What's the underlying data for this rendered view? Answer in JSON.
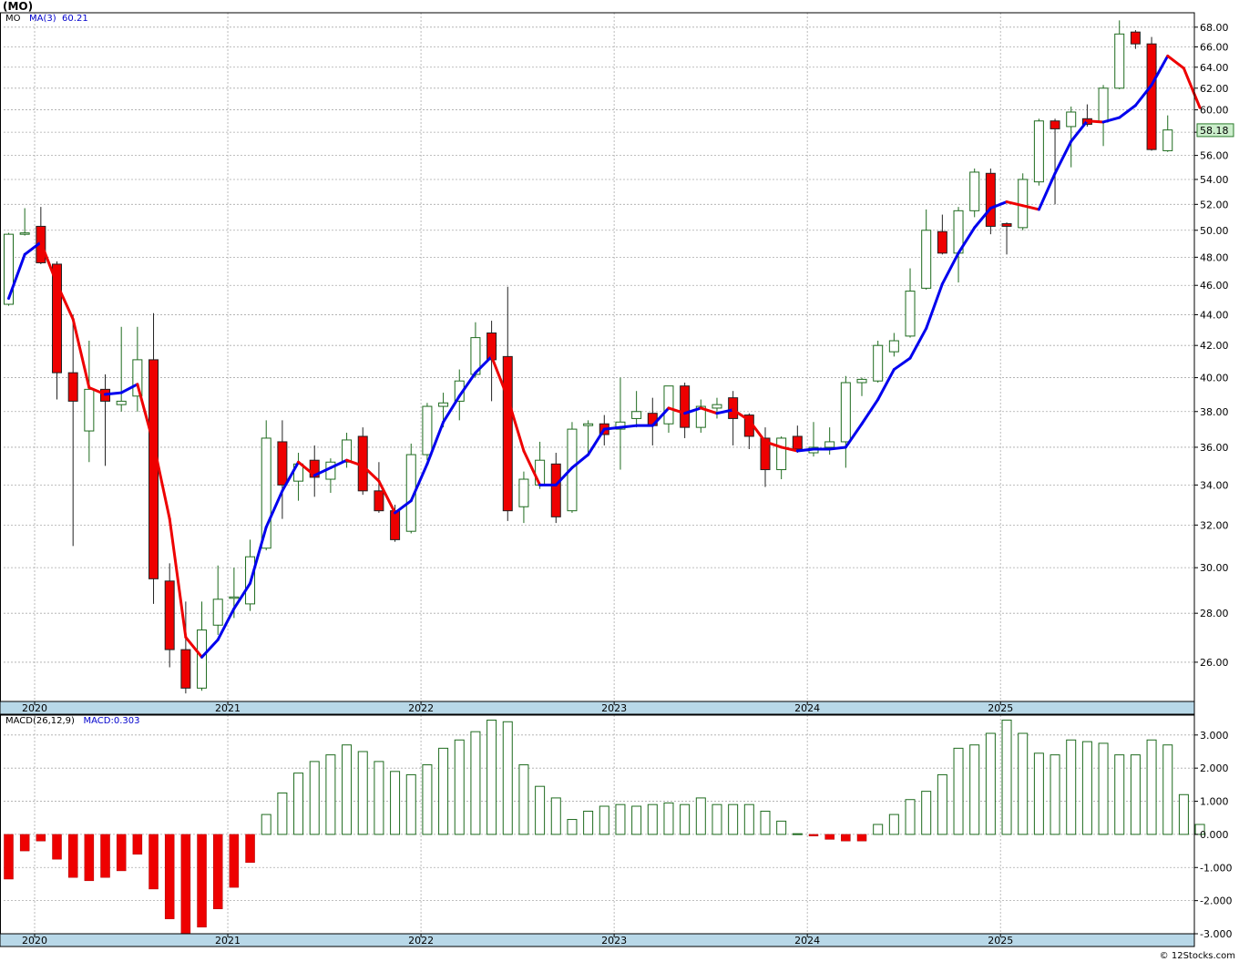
{
  "ticker_label": "(MO)",
  "price_legend": {
    "symbol": "MO",
    "ma_label": "MA(3)",
    "ma_value": "60.21"
  },
  "macd_legend": {
    "label": "MACD(26,12,9)",
    "value_label": "MACD:0.303"
  },
  "credit": "© 12Stocks.com",
  "colors": {
    "up": "#ffffff",
    "up_border": "#1e6b1e",
    "down": "#ee0000",
    "ma_up": "#0000ee",
    "ma_down": "#ee0000",
    "grid": "#aaaaaa",
    "axis_band": "#b8d8e8",
    "last_price_box": "#cceecc"
  },
  "chart_data": [
    {
      "type": "candlestick",
      "interval": "monthly",
      "y_scale": "log",
      "ylim": [
        24.5,
        69.5
      ],
      "y_ticks": [
        "26.00",
        "28.00",
        "30.00",
        "32.00",
        "34.00",
        "36.00",
        "38.00",
        "40.00",
        "42.00",
        "44.00",
        "46.00",
        "48.00",
        "50.00",
        "52.00",
        "54.00",
        "56.00",
        "58.00",
        "60.00",
        "62.00",
        "64.00",
        "66.00",
        "68.00"
      ],
      "x_labels": [
        "2020",
        "2021",
        "2022",
        "2023",
        "2024",
        "2025"
      ],
      "last_price": "58.18",
      "grid": true,
      "candles": [
        {
          "o": 44.7,
          "h": 49.8,
          "l": 44.6,
          "c": 49.7
        },
        {
          "o": 49.8,
          "h": 51.7,
          "l": 49.6,
          "c": 49.8
        },
        {
          "o": 50.3,
          "h": 51.8,
          "l": 47.5,
          "c": 47.6
        },
        {
          "o": 47.5,
          "h": 47.7,
          "l": 38.7,
          "c": 40.3
        },
        {
          "o": 40.3,
          "h": 44.0,
          "l": 31.0,
          "c": 38.6
        },
        {
          "o": 36.9,
          "h": 42.3,
          "l": 35.2,
          "c": 39.3
        },
        {
          "o": 39.3,
          "h": 40.2,
          "l": 35.0,
          "c": 38.6
        },
        {
          "o": 38.4,
          "h": 43.2,
          "l": 38.0,
          "c": 38.6
        },
        {
          "o": 38.9,
          "h": 43.2,
          "l": 38.0,
          "c": 41.1
        },
        {
          "o": 41.1,
          "h": 44.1,
          "l": 28.4,
          "c": 29.5
        },
        {
          "o": 29.4,
          "h": 30.2,
          "l": 25.8,
          "c": 26.5
        },
        {
          "o": 26.5,
          "h": 28.5,
          "l": 24.8,
          "c": 25.0
        },
        {
          "o": 25.0,
          "h": 28.5,
          "l": 24.9,
          "c": 27.3
        },
        {
          "o": 27.5,
          "h": 30.1,
          "l": 27.1,
          "c": 28.6
        },
        {
          "o": 28.7,
          "h": 30.0,
          "l": 27.8,
          "c": 28.7
        },
        {
          "o": 28.4,
          "h": 31.3,
          "l": 28.1,
          "c": 30.5
        },
        {
          "o": 30.9,
          "h": 37.5,
          "l": 30.8,
          "c": 36.5
        },
        {
          "o": 36.3,
          "h": 37.5,
          "l": 32.3,
          "c": 34.0
        },
        {
          "o": 34.2,
          "h": 35.7,
          "l": 33.2,
          "c": 35.1
        },
        {
          "o": 35.3,
          "h": 36.1,
          "l": 33.4,
          "c": 34.4
        },
        {
          "o": 34.3,
          "h": 35.4,
          "l": 33.6,
          "c": 35.2
        },
        {
          "o": 35.2,
          "h": 36.8,
          "l": 34.9,
          "c": 36.4
        },
        {
          "o": 36.6,
          "h": 37.1,
          "l": 33.5,
          "c": 33.7
        },
        {
          "o": 33.7,
          "h": 35.2,
          "l": 32.6,
          "c": 32.7
        },
        {
          "o": 32.7,
          "h": 33.0,
          "l": 31.2,
          "c": 31.3
        },
        {
          "o": 31.7,
          "h": 36.2,
          "l": 31.6,
          "c": 35.6
        },
        {
          "o": 35.6,
          "h": 38.5,
          "l": 35.3,
          "c": 38.3
        },
        {
          "o": 38.3,
          "h": 39.1,
          "l": 37.1,
          "c": 38.5
        },
        {
          "o": 38.6,
          "h": 40.5,
          "l": 37.5,
          "c": 39.8
        },
        {
          "o": 40.2,
          "h": 43.5,
          "l": 40.0,
          "c": 42.5
        },
        {
          "o": 42.8,
          "h": 43.6,
          "l": 38.6,
          "c": 41.1
        },
        {
          "o": 41.3,
          "h": 45.9,
          "l": 32.2,
          "c": 32.7
        },
        {
          "o": 32.9,
          "h": 34.7,
          "l": 32.1,
          "c": 34.3
        },
        {
          "o": 34.0,
          "h": 36.3,
          "l": 33.8,
          "c": 35.3
        },
        {
          "o": 35.1,
          "h": 35.7,
          "l": 32.1,
          "c": 32.4
        },
        {
          "o": 32.7,
          "h": 37.4,
          "l": 32.6,
          "c": 37.0
        },
        {
          "o": 37.2,
          "h": 37.5,
          "l": 35.5,
          "c": 37.3
        },
        {
          "o": 37.3,
          "h": 37.8,
          "l": 36.1,
          "c": 36.7
        },
        {
          "o": 37.0,
          "h": 40.0,
          "l": 34.8,
          "c": 37.4
        },
        {
          "o": 37.6,
          "h": 39.2,
          "l": 37.1,
          "c": 38.0
        },
        {
          "o": 37.9,
          "h": 38.8,
          "l": 36.1,
          "c": 37.2
        },
        {
          "o": 37.3,
          "h": 39.5,
          "l": 36.8,
          "c": 39.5
        },
        {
          "o": 39.5,
          "h": 39.7,
          "l": 36.5,
          "c": 37.1
        },
        {
          "o": 37.1,
          "h": 38.7,
          "l": 36.8,
          "c": 38.3
        },
        {
          "o": 38.2,
          "h": 38.8,
          "l": 37.6,
          "c": 38.4
        },
        {
          "o": 38.8,
          "h": 39.2,
          "l": 36.1,
          "c": 37.6
        },
        {
          "o": 37.8,
          "h": 37.9,
          "l": 35.9,
          "c": 36.6
        },
        {
          "o": 36.5,
          "h": 37.1,
          "l": 33.9,
          "c": 34.8
        },
        {
          "o": 34.8,
          "h": 36.6,
          "l": 34.3,
          "c": 36.5
        },
        {
          "o": 36.6,
          "h": 37.2,
          "l": 35.7,
          "c": 35.9
        },
        {
          "o": 35.7,
          "h": 37.4,
          "l": 35.5,
          "c": 36.0
        },
        {
          "o": 36.0,
          "h": 37.1,
          "l": 35.6,
          "c": 36.3
        },
        {
          "o": 36.3,
          "h": 40.1,
          "l": 34.9,
          "c": 39.7
        },
        {
          "o": 39.7,
          "h": 40.0,
          "l": 38.9,
          "c": 39.9
        },
        {
          "o": 39.8,
          "h": 42.3,
          "l": 39.7,
          "c": 42.0
        },
        {
          "o": 41.6,
          "h": 42.8,
          "l": 41.3,
          "c": 42.3
        },
        {
          "o": 42.6,
          "h": 47.2,
          "l": 42.5,
          "c": 45.6
        },
        {
          "o": 45.8,
          "h": 51.6,
          "l": 45.7,
          "c": 50.0
        },
        {
          "o": 49.9,
          "h": 51.2,
          "l": 48.2,
          "c": 48.3
        },
        {
          "o": 48.3,
          "h": 51.8,
          "l": 46.2,
          "c": 51.5
        },
        {
          "o": 51.5,
          "h": 54.9,
          "l": 51.0,
          "c": 54.6
        },
        {
          "o": 54.5,
          "h": 54.9,
          "l": 49.7,
          "c": 50.3
        },
        {
          "o": 50.5,
          "h": 50.6,
          "l": 48.2,
          "c": 50.3
        },
        {
          "o": 50.2,
          "h": 54.5,
          "l": 50.0,
          "c": 54.0
        },
        {
          "o": 53.8,
          "h": 59.2,
          "l": 53.5,
          "c": 59.0
        },
        {
          "o": 59.0,
          "h": 59.2,
          "l": 52.0,
          "c": 58.3
        },
        {
          "o": 58.5,
          "h": 60.3,
          "l": 55.0,
          "c": 59.8
        },
        {
          "o": 59.2,
          "h": 60.5,
          "l": 58.5,
          "c": 58.7
        },
        {
          "o": 58.9,
          "h": 62.3,
          "l": 56.8,
          "c": 62.0
        },
        {
          "o": 62.0,
          "h": 68.7,
          "l": 61.9,
          "c": 67.3
        },
        {
          "o": 67.5,
          "h": 67.7,
          "l": 65.8,
          "c": 66.3
        },
        {
          "o": 66.3,
          "h": 67.0,
          "l": 56.4,
          "c": 56.5
        },
        {
          "o": 56.4,
          "h": 59.5,
          "l": 56.3,
          "c": 58.2
        }
      ],
      "ma": [
        45.1,
        48.2,
        49.1,
        46.1,
        43.7,
        39.4,
        39.0,
        39.1,
        39.6,
        36.2,
        32.3,
        27.0,
        26.2,
        26.9,
        28.2,
        29.3,
        31.9,
        33.7,
        35.2,
        34.5,
        34.9,
        35.3,
        35.0,
        34.2,
        32.6,
        33.2,
        35.1,
        37.4,
        38.9,
        40.3,
        41.3,
        38.8,
        35.8,
        34.0,
        34.0,
        34.9,
        35.6,
        37.0,
        37.1,
        37.2,
        37.2,
        38.2,
        37.9,
        38.2,
        37.9,
        38.1,
        37.5,
        36.3,
        36.0,
        35.8,
        35.9,
        35.9,
        36.0,
        37.3,
        38.7,
        40.5,
        41.2,
        43.1,
        46.1,
        48.3,
        50.2,
        51.7,
        52.2,
        51.9,
        51.6,
        54.5,
        57.2,
        59.0,
        58.9,
        59.3,
        60.4,
        62.3,
        65.1,
        63.9,
        60.2
      ],
      "ma_label": "MA(3)",
      "ma_last": "60.21"
    },
    {
      "type": "bar",
      "name": "MACD(26,12,9)",
      "ylim": [
        -3.0,
        3.6
      ],
      "y_ticks": [
        "-3.000",
        "-2.000",
        "-1.000",
        "0.000",
        "1.000",
        "2.000",
        "3.000"
      ],
      "x_labels": [
        "2020",
        "2021",
        "2022",
        "2023",
        "2024",
        "2025"
      ],
      "values": [
        -1.35,
        -0.5,
        -0.2,
        -0.75,
        -1.3,
        -1.4,
        -1.3,
        -1.1,
        -0.6,
        -1.65,
        -2.55,
        -3.0,
        -2.8,
        -2.25,
        -1.6,
        -0.85,
        0.6,
        1.25,
        1.85,
        2.2,
        2.4,
        2.7,
        2.5,
        2.2,
        1.9,
        1.8,
        2.1,
        2.6,
        2.85,
        3.1,
        3.45,
        3.4,
        2.1,
        1.45,
        1.1,
        0.45,
        0.7,
        0.85,
        0.9,
        0.85,
        0.9,
        0.95,
        0.9,
        1.1,
        0.9,
        0.9,
        0.9,
        0.7,
        0.4,
        0.02,
        -0.05,
        -0.15,
        -0.2,
        -0.2,
        0.3,
        0.6,
        1.05,
        1.3,
        1.8,
        2.6,
        2.7,
        3.05,
        3.45,
        3.05,
        2.45,
        2.4,
        2.85,
        2.8,
        2.75,
        2.4,
        2.4,
        2.85,
        2.7,
        1.2,
        0.3
      ],
      "value_label": "MACD:0.303"
    }
  ]
}
